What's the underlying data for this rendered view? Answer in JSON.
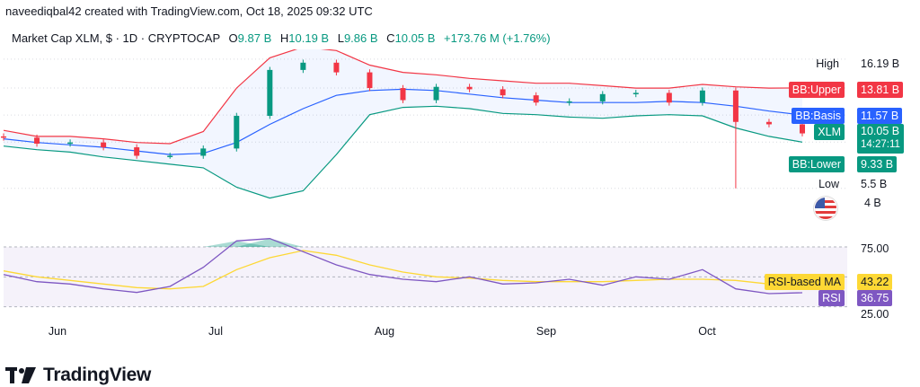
{
  "header": {
    "text": "naveediqbal42 created with TradingView.com, Oct 18, 2025 09:32 UTC"
  },
  "legend": {
    "title": "Market Cap XLM, $ · 1D · CRYPTOCAP",
    "o_label": "O",
    "o_value": "9.87 B",
    "h_label": "H",
    "h_value": "10.19 B",
    "l_label": "L",
    "l_value": "9.86 B",
    "c_label": "C",
    "c_value": "10.05 B",
    "change": "+173.76 M (+1.76%)"
  },
  "price_scale": {
    "high_label": "High",
    "high_value": "16.19 B",
    "bb_upper_label": "BB:Upper",
    "bb_upper_value": "13.81 B",
    "bb_basis_label": "BB:Basis",
    "bb_basis_value": "11.57 B",
    "symbol_label": "XLM",
    "symbol_value": "10.05 B",
    "countdown": "14:27:11",
    "bb_lower_label": "BB:Lower",
    "bb_lower_value": "9.33 B",
    "low_label": "Low",
    "low_value": "5.5 B",
    "tick_4b": "4 B"
  },
  "rsi_scale": {
    "tick_75": "75.00",
    "tick_25": "25.00",
    "ma_label": "RSI-based MA",
    "ma_value": "43.22",
    "rsi_label": "RSI",
    "rsi_value": "36.75"
  },
  "footer": {
    "brand": "TradingView"
  },
  "colors": {
    "up": "#089981",
    "down": "#f23645",
    "bb_upper": "#f23645",
    "bb_basis": "#2962ff",
    "bb_lower": "#089981",
    "rsi": "#7e57c2",
    "rsi_ma": "#fdd835"
  },
  "chart_data": [
    {
      "type": "line",
      "title": "Market Cap XLM, $ · 1D · CRYPTOCAP",
      "x_ticks": [
        "Jun",
        "Jul",
        "Aug",
        "Sep",
        "Oct"
      ],
      "y_unit": "B",
      "ylim": [
        4,
        17
      ],
      "series": [
        {
          "name": "XLM",
          "x": [
            "May 25",
            "Jun 1",
            "Jun 8",
            "Jun 15",
            "Jun 22",
            "Jun 29",
            "Jul 6",
            "Jul 10",
            "Jul 14",
            "Jul 18",
            "Jul 22",
            "Jul 26",
            "Aug 1",
            "Aug 8",
            "Aug 15",
            "Aug 22",
            "Aug 29",
            "Sep 5",
            "Sep 12",
            "Sep 19",
            "Sep 26",
            "Oct 3",
            "Oct 10",
            "Oct 14",
            "Oct 18"
          ],
          "values": [
            9.7,
            9.2,
            9.3,
            8.9,
            8.2,
            8.2,
            8.8,
            11.5,
            15.3,
            15.9,
            15.1,
            13.8,
            12.8,
            13.9,
            13.7,
            13.2,
            12.6,
            12.7,
            13.3,
            13.4,
            12.6,
            13.6,
            11.0,
            10.8,
            10.05
          ]
        },
        {
          "name": "BB:Upper",
          "values": [
            10.3,
            9.8,
            9.8,
            9.6,
            9.3,
            9.2,
            10.2,
            13.8,
            16.3,
            17.2,
            16.9,
            15.7,
            15.1,
            14.9,
            14.6,
            14.4,
            14.2,
            14.2,
            14.0,
            13.8,
            13.8,
            14.1,
            13.9,
            13.8,
            13.81
          ]
        },
        {
          "name": "BB:Basis",
          "values": [
            9.6,
            9.3,
            9.1,
            8.9,
            8.6,
            8.3,
            8.4,
            9.3,
            10.8,
            12.1,
            13.2,
            13.6,
            13.7,
            13.6,
            13.3,
            13.0,
            12.8,
            12.6,
            12.6,
            12.6,
            12.7,
            12.6,
            12.3,
            11.9,
            11.57
          ]
        },
        {
          "name": "BB:Lower",
          "values": [
            9.0,
            8.7,
            8.5,
            8.1,
            7.8,
            7.5,
            7.2,
            5.6,
            4.7,
            5.3,
            8.3,
            11.6,
            12.2,
            12.3,
            12.1,
            11.7,
            11.6,
            11.4,
            11.3,
            11.5,
            11.6,
            11.5,
            10.5,
            9.8,
            9.33
          ]
        }
      ],
      "high": 16.19,
      "low": 5.5,
      "low_spike_x": "Oct 10"
    },
    {
      "type": "line",
      "title": "",
      "ylim": [
        15,
        90
      ],
      "y_ticks": [
        25,
        75
      ],
      "series": [
        {
          "name": "RSI",
          "values": [
            52,
            46,
            44,
            40,
            37,
            42,
            58,
            80,
            82,
            71,
            60,
            52,
            48,
            46,
            50,
            44,
            45,
            48,
            43,
            50,
            48,
            56,
            40,
            36,
            36.75
          ]
        },
        {
          "name": "RSI-based MA",
          "values": [
            55,
            50,
            47,
            44,
            41,
            40,
            42,
            56,
            66,
            72,
            68,
            60,
            54,
            50,
            49,
            47,
            46,
            46,
            46,
            47,
            48,
            48,
            47,
            44,
            43.22
          ]
        }
      ]
    }
  ]
}
